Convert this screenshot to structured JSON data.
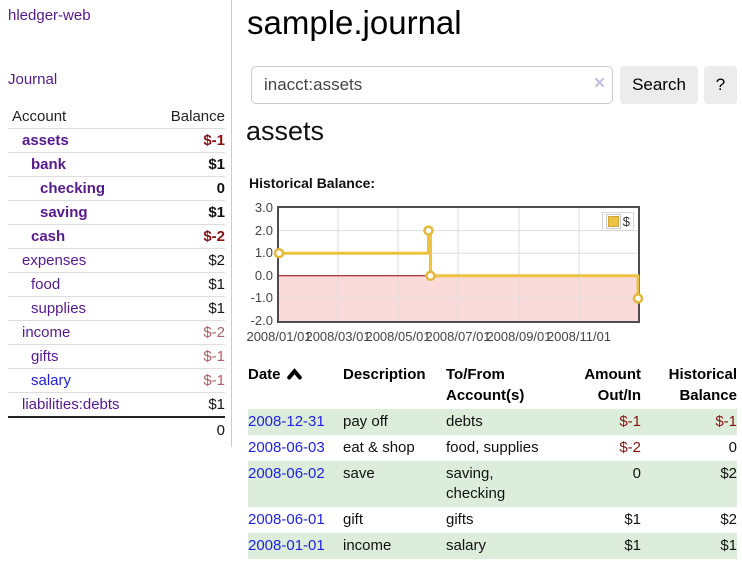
{
  "app_title": "hledger-web",
  "nav": {
    "journal": "Journal"
  },
  "colors": {
    "link_purple": "#551a8b",
    "link_blue": "#2222dd",
    "negative": "#8b1111",
    "negative_muted": "#b0606a",
    "row_green": "#dceedb",
    "series_gold": "#EDC240"
  },
  "sidebar": {
    "col_account": "Account",
    "col_balance": "Balance",
    "accounts": [
      {
        "name": "assets",
        "level": 1,
        "bold": true,
        "color": "purple",
        "balance": "$-1",
        "balance_style": "neg-bold"
      },
      {
        "name": "bank",
        "level": 2,
        "bold": true,
        "color": "purple",
        "balance": "$1",
        "balance_style": "bold"
      },
      {
        "name": "checking",
        "level": 3,
        "bold": true,
        "color": "purple",
        "balance": "0",
        "balance_style": "bold"
      },
      {
        "name": "saving",
        "level": 3,
        "bold": true,
        "color": "purple",
        "balance": "$1",
        "balance_style": "bold"
      },
      {
        "name": "cash",
        "level": 2,
        "bold": true,
        "color": "purple",
        "balance": "$-2",
        "balance_style": "neg-bold"
      },
      {
        "name": "expenses",
        "level": 1,
        "bold": false,
        "color": "purple",
        "balance": "$2",
        "balance_style": "plain"
      },
      {
        "name": "food",
        "level": 2,
        "bold": false,
        "color": "purple",
        "balance": "$1",
        "balance_style": "plain"
      },
      {
        "name": "supplies",
        "level": 2,
        "bold": false,
        "color": "purple",
        "balance": "$1",
        "balance_style": "plain"
      },
      {
        "name": "income",
        "level": 1,
        "bold": false,
        "color": "purple",
        "balance": "$-2",
        "balance_style": "neg-light"
      },
      {
        "name": "gifts",
        "level": 2,
        "bold": false,
        "color": "purple",
        "balance": "$-1",
        "balance_style": "neg-light"
      },
      {
        "name": "salary",
        "level": 2,
        "bold": false,
        "color": "blue",
        "balance": "$-1",
        "balance_style": "neg-light"
      },
      {
        "name": "liabilities:debts",
        "level": 1,
        "bold": false,
        "color": "purple",
        "balance": "$1",
        "balance_style": "plain"
      }
    ],
    "total": "0"
  },
  "main": {
    "title": "sample.journal",
    "search": {
      "value": "inacct:assets",
      "clear": "×",
      "search_button": "Search",
      "help_button": "?"
    },
    "heading": "assets",
    "chart_title": "Historical Balance:"
  },
  "chart_data": {
    "type": "line",
    "step": true,
    "title": "Historical Balance",
    "x_range": [
      "2008-01-01",
      "2008-12-31"
    ],
    "ylim": [
      -2,
      3
    ],
    "x_ticks": [
      "2008/01/01",
      "2008/03/01",
      "2008/05/01",
      "2008/07/01",
      "2008/09/01",
      "2008/11/01"
    ],
    "y_ticks": [
      "3.0",
      "2.0",
      "1.0",
      "0.0",
      "-1.0",
      "-2.0"
    ],
    "series": [
      {
        "name": "$",
        "color": "#EDC240",
        "points": [
          {
            "x": "2008-01-01",
            "y": 1
          },
          {
            "x": "2008-06-01",
            "y": 2
          },
          {
            "x": "2008-06-03",
            "y": 0
          },
          {
            "x": "2008-12-31",
            "y": -1
          }
        ]
      }
    ],
    "legend": {
      "label": "$",
      "position": "top-right"
    },
    "grid": true,
    "zero_line_color": "#8b0000",
    "negative_region_color": "#fbdada"
  },
  "register": {
    "sort": {
      "column": "date",
      "direction": "asc"
    },
    "headers": {
      "date": "Date",
      "description": "Description",
      "accounts": "To/From Account(s)",
      "amount": "Amount Out/In",
      "balance": "Historical Balance"
    },
    "rows": [
      {
        "date": "2008-12-31",
        "description": "pay off",
        "accounts": "debts",
        "amount": "$-1",
        "amount_neg": true,
        "balance": "$-1",
        "balance_neg": true
      },
      {
        "date": "2008-06-03",
        "description": "eat & shop",
        "accounts": "food, supplies",
        "amount": "$-2",
        "amount_neg": true,
        "balance": "0",
        "balance_neg": false
      },
      {
        "date": "2008-06-02",
        "description": "save",
        "accounts": "saving, checking",
        "amount": "0",
        "amount_neg": false,
        "balance": "$2",
        "balance_neg": false
      },
      {
        "date": "2008-06-01",
        "description": "gift",
        "accounts": "gifts",
        "amount": "$1",
        "amount_neg": false,
        "balance": "$2",
        "balance_neg": false
      },
      {
        "date": "2008-01-01",
        "description": "income",
        "accounts": "salary",
        "amount": "$1",
        "amount_neg": false,
        "balance": "$1",
        "balance_neg": false
      }
    ]
  }
}
